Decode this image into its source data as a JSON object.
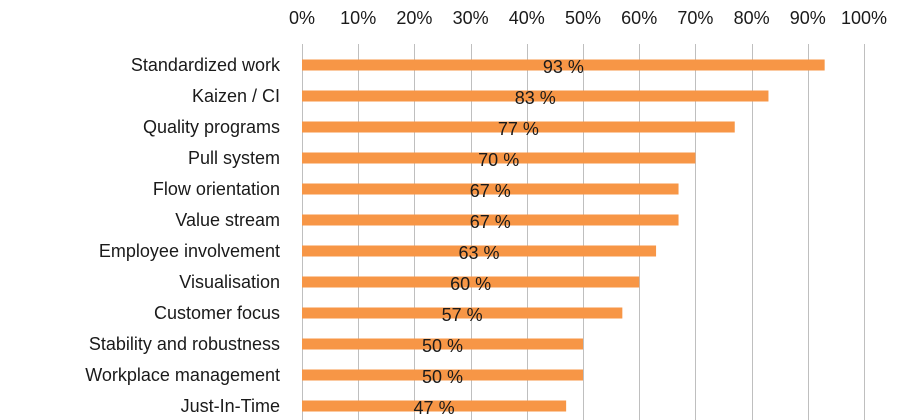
{
  "chart_data": {
    "type": "bar",
    "orientation": "horizontal",
    "categories": [
      "Standardized work",
      "Kaizen / CI",
      "Quality programs",
      "Pull system",
      "Flow orientation",
      "Value stream",
      "Employee involvement",
      "Visualisation",
      "Customer focus",
      "Stability and robustness",
      "Workplace management",
      "Just-In-Time"
    ],
    "values": [
      93,
      83,
      77,
      70,
      67,
      67,
      63,
      60,
      57,
      50,
      50,
      47
    ],
    "data_labels": [
      "93 %",
      "83 %",
      "77 %",
      "70 %",
      "67 %",
      "67 %",
      "63 %",
      "60 %",
      "57 %",
      "50 %",
      "50 %",
      "47 %"
    ],
    "x_ticks": [
      "0%",
      "10%",
      "20%",
      "30%",
      "40%",
      "50%",
      "60%",
      "70%",
      "80%",
      "90%",
      "100%"
    ],
    "xlim": [
      0,
      100
    ],
    "x_axis_position": "top",
    "grid": true,
    "bar_color": "#f79646"
  }
}
